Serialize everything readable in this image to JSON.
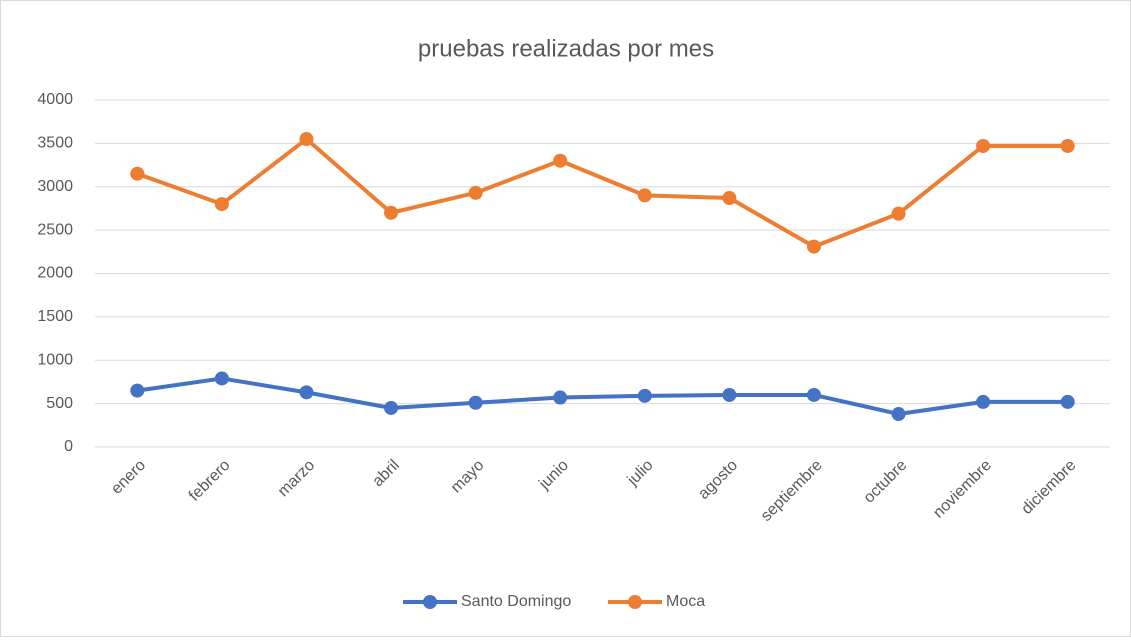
{
  "chart_data": {
    "type": "line",
    "title": "pruebas realizadas por mes",
    "categories": [
      "enero",
      "febrero",
      "marzo",
      "abril",
      "mayo",
      "junio",
      "julio",
      "agosto",
      "septiembre",
      "octubre",
      "noviembre",
      "diciembre"
    ],
    "series": [
      {
        "name": "Santo Domingo",
        "color": "#4472c4",
        "values": [
          650,
          790,
          630,
          450,
          510,
          570,
          590,
          600,
          600,
          380,
          520,
          520
        ]
      },
      {
        "name": "Moca",
        "color": "#ed7d31",
        "values": [
          3150,
          2800,
          3550,
          2700,
          2930,
          3300,
          2900,
          2870,
          2310,
          2690,
          3470,
          3470
        ]
      }
    ],
    "ylim": [
      0,
      4000
    ],
    "yticks": [
      0,
      500,
      1000,
      1500,
      2000,
      2500,
      3000,
      3500,
      4000
    ],
    "grid": true,
    "legend": "bottom"
  }
}
